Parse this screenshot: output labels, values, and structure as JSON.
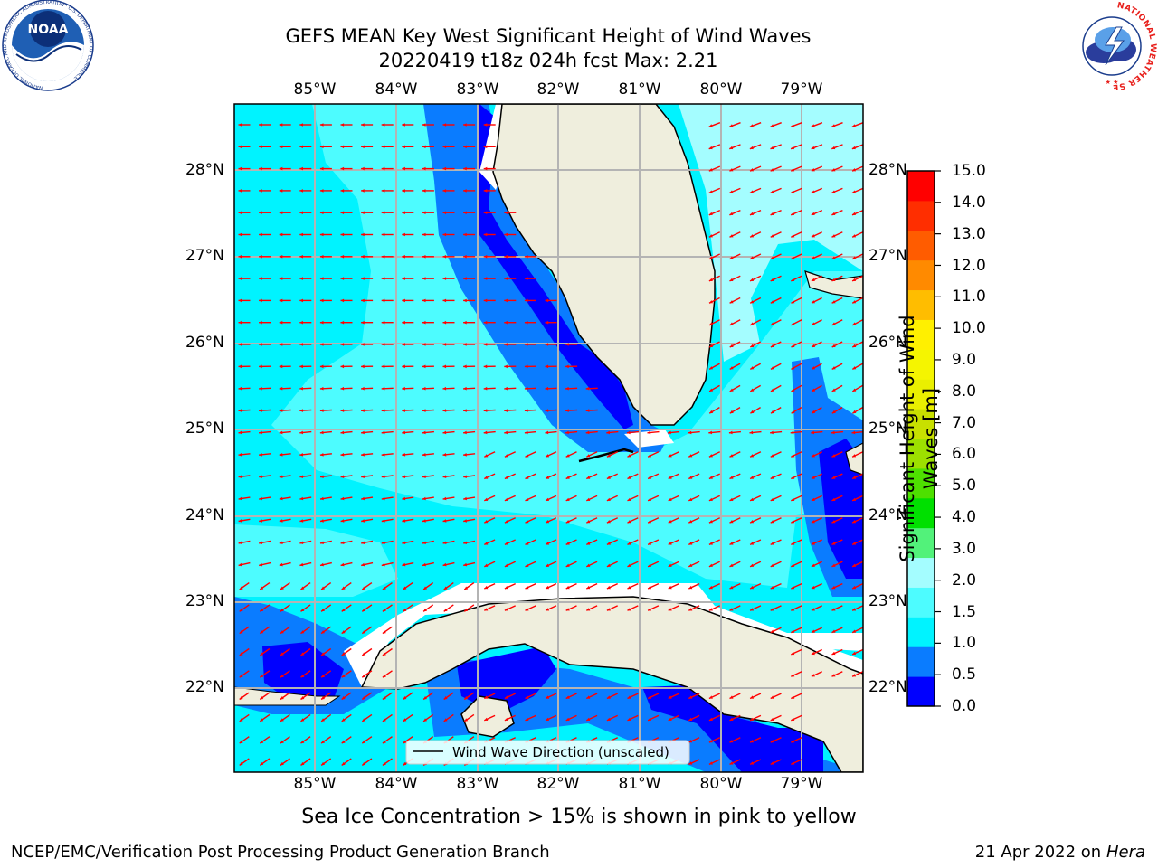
{
  "header": {
    "title_line1": "GEFS MEAN Key West Significant Height of Wind Waves",
    "title_line2": "20220419 t18z 024h fcst   Max: 2.21"
  },
  "map": {
    "lon_labels": [
      "85°W",
      "84°W",
      "83°W",
      "82°W",
      "81°W",
      "80°W",
      "79°W"
    ],
    "lat_labels": [
      "28°N",
      "27°N",
      "26°N",
      "25°N",
      "24°N",
      "23°N",
      "22°N"
    ],
    "legend_label": "Wind Wave Direction (unscaled)",
    "colors": {
      "land": "#efeedd",
      "band_0_0.5": "#0000ff",
      "band_0.5_1": "#0a7cff",
      "band_1_1.5": "#00f3ff",
      "band_1.5_2": "#4dfcff",
      "band_2_3": "#a4fdff",
      "arrow": "#ff0000",
      "grid": "#b4b4b4"
    }
  },
  "colorbar": {
    "title": "Significant Height of Wind Waves [m]",
    "tick_labels": [
      "15.0",
      "14.0",
      "13.0",
      "12.0",
      "11.0",
      "10.0",
      "9.0",
      "8.0",
      "7.0",
      "6.0",
      "5.0",
      "4.0",
      "3.0",
      "2.0",
      "1.5",
      "1.0",
      "0.5",
      "0.0"
    ],
    "colors_bottom_to_top": [
      "#0000ff",
      "#0a7cff",
      "#00f3ff",
      "#4dfcff",
      "#a4fdff",
      "#52f27a",
      "#00e000",
      "#4ee000",
      "#9de000",
      "#c8e000",
      "#eaef00",
      "#f5f500",
      "#fff000",
      "#ffbd00",
      "#ff8a00",
      "#ff5c00",
      "#ff2e00",
      "#ff0000"
    ]
  },
  "notes": {
    "ice_note": "Sea Ice Concentration > 15% is shown in pink to yellow"
  },
  "footer": {
    "left": "NCEP/EMC/Verification Post Processing Product Generation Branch",
    "right_date": "21 Apr 2022 on ",
    "right_host": "Hera"
  },
  "logos": {
    "noaa_text": "NOAA",
    "noaa_ring_text": "NATIONAL OCEANIC AND ATMOSPHERIC ADMINISTRATION · U.S. DEPARTMENT OF COMMERCE",
    "nws_ring_text": "NATIONAL WEATHER SERVICE"
  }
}
